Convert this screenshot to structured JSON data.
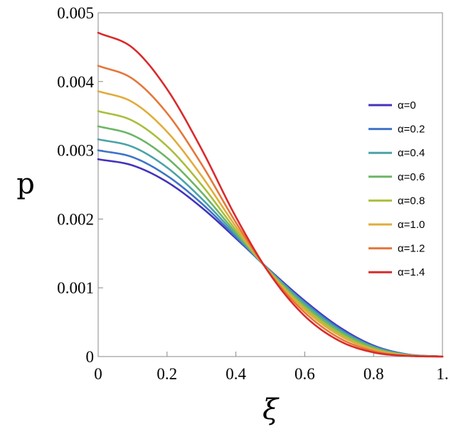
{
  "chart_data": {
    "type": "line",
    "xlabel": "ξ",
    "ylabel": "p",
    "xlim": [
      0,
      1
    ],
    "ylim": [
      0,
      0.005
    ],
    "x_ticks": [
      {
        "value": 0,
        "label": "0"
      },
      {
        "value": 0.2,
        "label": "0.2"
      },
      {
        "value": 0.4,
        "label": "0.4"
      },
      {
        "value": 0.6,
        "label": "0.6"
      },
      {
        "value": 0.8,
        "label": "0.8"
      },
      {
        "value": 1.0,
        "label": "1."
      }
    ],
    "y_ticks": [
      {
        "value": 0,
        "label": "0"
      },
      {
        "value": 0.001,
        "label": "0.001"
      },
      {
        "value": 0.002,
        "label": "0.002"
      },
      {
        "value": 0.003,
        "label": "0.003"
      },
      {
        "value": 0.004,
        "label": "0.004"
      },
      {
        "value": 0.005,
        "label": "0.005"
      }
    ],
    "grid": false,
    "legend_position": "right",
    "x": [
      0,
      0.1,
      0.2,
      0.3,
      0.4,
      0.5,
      0.6,
      0.7,
      0.8,
      0.9,
      1.0
    ],
    "series": [
      {
        "name": "α=0",
        "color": "#4433bb",
        "values": [
          0.00287,
          0.00278,
          0.00254,
          0.00217,
          0.00172,
          0.00125,
          0.00081,
          0.00043,
          0.00016,
          3e-05,
          0
        ]
      },
      {
        "name": "α=0.2",
        "color": "#3f74c9",
        "values": [
          0.003,
          0.0029,
          0.00263,
          0.00223,
          0.00174,
          0.00124,
          0.00079,
          0.00041,
          0.00015,
          3e-05,
          0
        ]
      },
      {
        "name": "α=0.4",
        "color": "#4aa3a8",
        "values": [
          0.00316,
          0.00305,
          0.00275,
          0.0023,
          0.00177,
          0.00124,
          0.00077,
          0.00039,
          0.00014,
          2.5e-05,
          0
        ]
      },
      {
        "name": "α=0.6",
        "color": "#6db566",
        "values": [
          0.00335,
          0.00322,
          0.00289,
          0.00239,
          0.0018,
          0.00123,
          0.00074,
          0.00037,
          0.00013,
          2e-05,
          0
        ]
      },
      {
        "name": "α=0.8",
        "color": "#a9bf3c",
        "values": [
          0.00357,
          0.00343,
          0.00306,
          0.0025,
          0.00184,
          0.00122,
          0.00071,
          0.00034,
          0.00011,
          2e-05,
          0
        ]
      },
      {
        "name": "α=1.0",
        "color": "#e1ac3a",
        "values": [
          0.00386,
          0.0037,
          0.00327,
          0.00263,
          0.00189,
          0.00121,
          0.00068,
          0.00031,
          0.0001,
          1.5e-05,
          0
        ]
      },
      {
        "name": "α=1.2",
        "color": "#e4773a",
        "values": [
          0.00423,
          0.00404,
          0.00354,
          0.0028,
          0.00195,
          0.0012,
          0.00064,
          0.00027,
          8e-05,
          1e-05,
          0
        ]
      },
      {
        "name": "α=1.4",
        "color": "#d92b2b",
        "values": [
          0.00471,
          0.00449,
          0.00389,
          0.00302,
          0.00203,
          0.00119,
          0.00059,
          0.00023,
          6e-05,
          1e-05,
          0
        ]
      }
    ]
  }
}
